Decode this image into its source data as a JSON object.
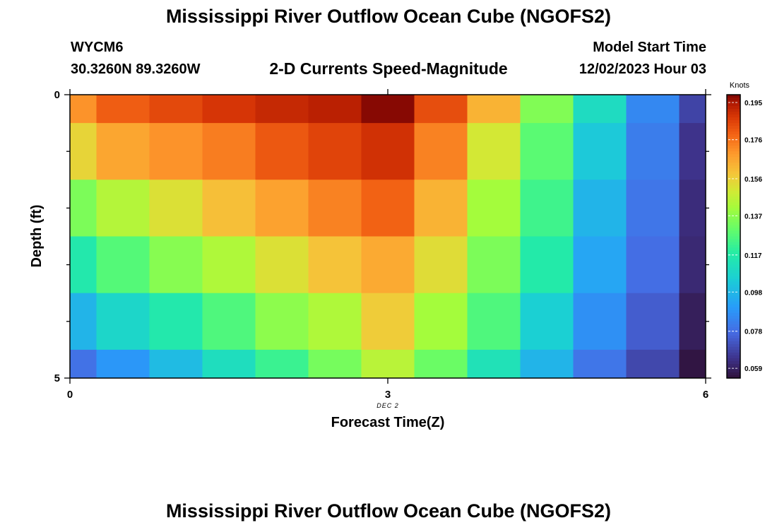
{
  "page": {
    "title_top": "Mississippi River Outflow Ocean Cube (NGOFS2)",
    "title_bottom": "Mississippi River Outflow Ocean Cube (NGOFS2)"
  },
  "station": {
    "id": "WYCM6",
    "coords": "30.3260N  89.3260W"
  },
  "model": {
    "label": "Model Start Time",
    "value": "12/02/2023 Hour 03"
  },
  "chart_data": {
    "type": "heatmap",
    "title": "2-D Currents Speed-Magnitude",
    "xlabel": "Forecast Time(Z)",
    "ylabel": "Depth (ft)",
    "x_ticks": [
      "0",
      "3",
      "6"
    ],
    "y_ticks": [
      "0",
      "5"
    ],
    "date_label": "DEC 2",
    "xlim": [
      0,
      6
    ],
    "ylim": [
      0,
      5
    ],
    "x_centers": [
      0,
      0.5,
      1,
      1.5,
      2,
      2.5,
      3,
      3.5,
      4,
      4.5,
      5,
      5.5,
      6
    ],
    "depth_rows": [
      0,
      1,
      2,
      3,
      4,
      5
    ],
    "colorbar": {
      "unit": "Knots",
      "min": 0.054,
      "max": 0.199,
      "tick_values": [
        0.195,
        0.176,
        0.156,
        0.137,
        0.117,
        0.098,
        0.078,
        0.059
      ],
      "tick_labels": [
        "0.195",
        "0.176",
        "0.156",
        "0.137",
        "0.117",
        "0.098",
        "0.078",
        "0.059"
      ]
    },
    "values": [
      [
        0.17,
        0.18,
        0.184,
        0.188,
        0.191,
        0.193,
        0.198,
        0.183,
        0.163,
        0.135,
        0.11,
        0.085,
        0.068
      ],
      [
        0.155,
        0.166,
        0.17,
        0.174,
        0.181,
        0.185,
        0.189,
        0.173,
        0.15,
        0.128,
        0.103,
        0.082,
        0.064
      ],
      [
        0.134,
        0.144,
        0.152,
        0.16,
        0.167,
        0.173,
        0.179,
        0.163,
        0.141,
        0.123,
        0.097,
        0.08,
        0.062
      ],
      [
        0.116,
        0.127,
        0.136,
        0.143,
        0.152,
        0.159,
        0.165,
        0.153,
        0.134,
        0.117,
        0.093,
        0.078,
        0.061
      ],
      [
        0.097,
        0.108,
        0.116,
        0.126,
        0.137,
        0.143,
        0.157,
        0.141,
        0.126,
        0.105,
        0.087,
        0.074,
        0.058
      ],
      [
        0.079,
        0.089,
        0.099,
        0.111,
        0.122,
        0.133,
        0.145,
        0.131,
        0.113,
        0.097,
        0.08,
        0.069,
        0.055
      ]
    ]
  }
}
